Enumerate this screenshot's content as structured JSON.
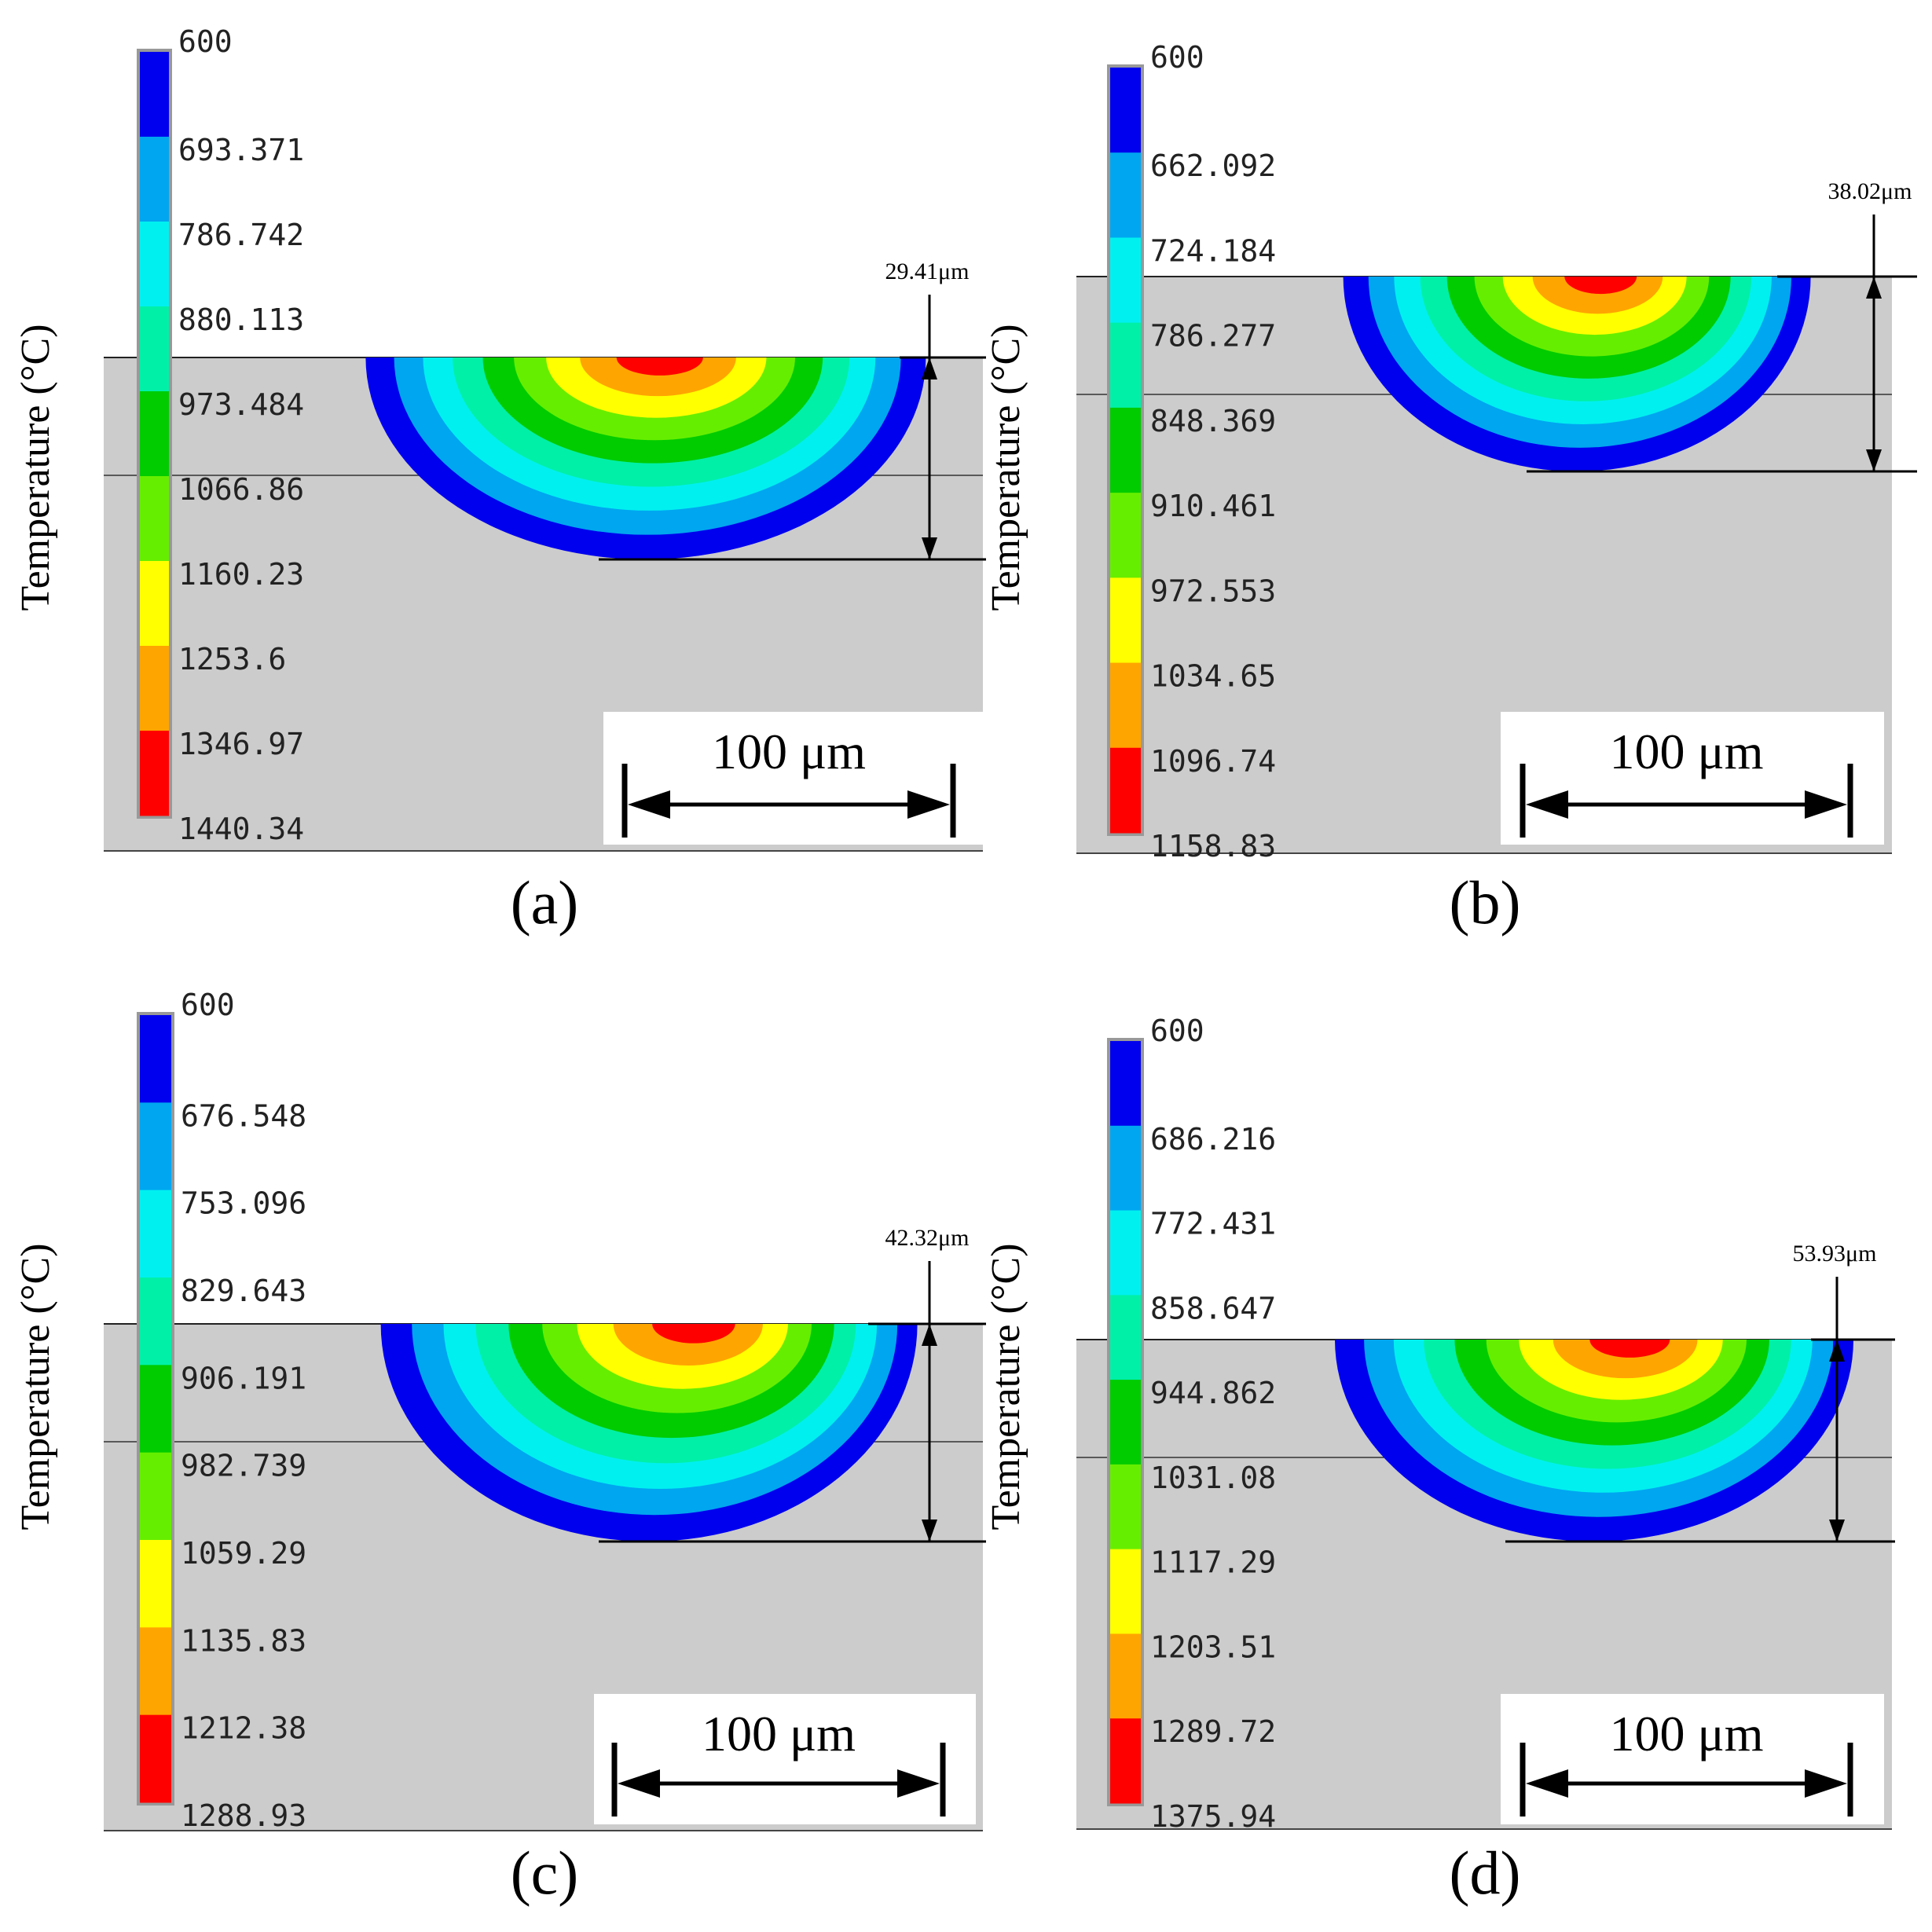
{
  "figure": {
    "axis_label": "Temperature (°C)",
    "scale_bar_label": "100 μm",
    "panels": [
      {
        "label": "(a)",
        "depth_label": "29.41μm",
        "legend_ticks": [
          "600",
          "693.371",
          "786.742",
          "880.113",
          "973.484",
          "1066.86",
          "1160.23",
          "1253.6",
          "1346.97",
          "1440.34"
        ]
      },
      {
        "label": "(b)",
        "depth_label": "38.02μm",
        "legend_ticks": [
          "600",
          "662.092",
          "724.184",
          "786.277",
          "848.369",
          "910.461",
          "972.553",
          "1034.65",
          "1096.74",
          "1158.83"
        ]
      },
      {
        "label": "(c)",
        "depth_label": "42.32μm",
        "legend_ticks": [
          "600",
          "676.548",
          "753.096",
          "829.643",
          "906.191",
          "982.739",
          "1059.29",
          "1135.83",
          "1212.38",
          "1288.93"
        ]
      },
      {
        "label": "(d)",
        "depth_label": "53.93μm",
        "legend_ticks": [
          "600",
          "686.216",
          "772.431",
          "858.647",
          "944.862",
          "1031.08",
          "1117.29",
          "1203.51",
          "1289.72",
          "1375.94"
        ]
      }
    ],
    "colors": {
      "background": "#cccccc",
      "levels": [
        "#0000ee",
        "#00a6f0",
        "#00f0f0",
        "#00f0a8",
        "#00cc00",
        "#66ee00",
        "#ffff00",
        "#ffa500",
        "#ff0000"
      ]
    }
  }
}
